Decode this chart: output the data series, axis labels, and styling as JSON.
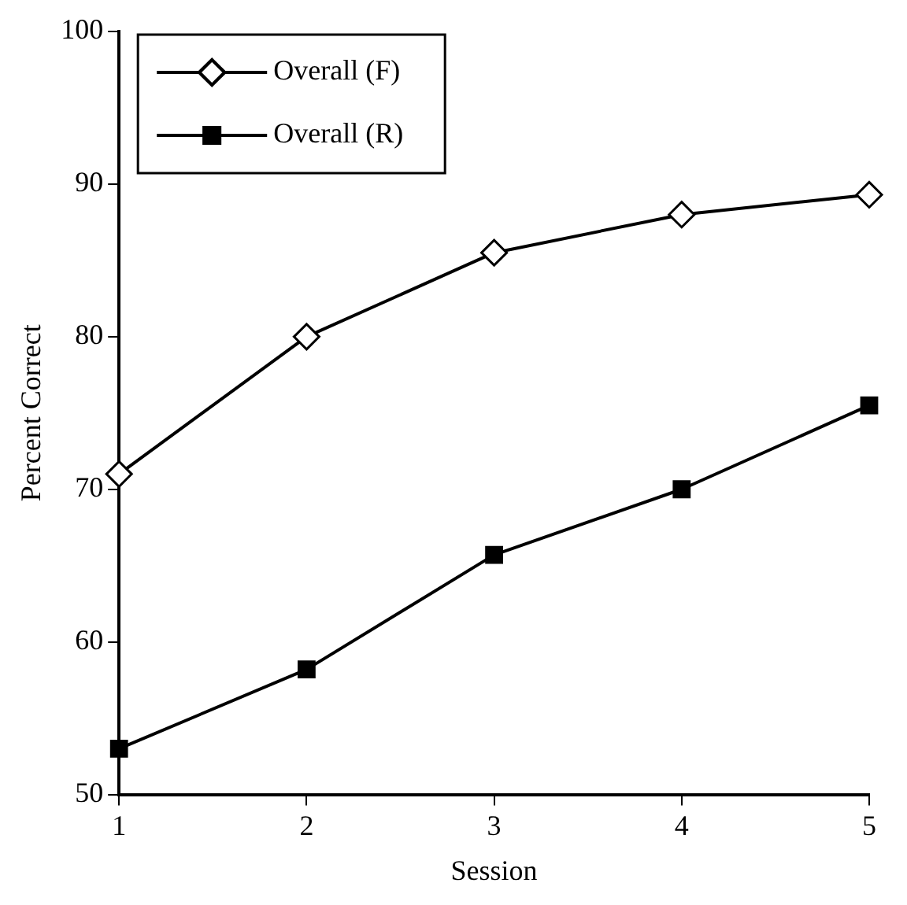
{
  "chart_data": {
    "type": "line",
    "xlabel": "Session",
    "ylabel": "Percent Correct",
    "x": [
      1,
      2,
      3,
      4,
      5
    ],
    "xlim": [
      1,
      5
    ],
    "xticks": [
      1,
      2,
      3,
      4,
      5
    ],
    "ylim": [
      50,
      100
    ],
    "yticks": [
      50,
      60,
      70,
      80,
      90,
      100
    ],
    "grid": false,
    "legend": "top left",
    "line_style": "solid",
    "series": [
      {
        "name": "Overall (F)",
        "color": "#000000",
        "marker": "diamond",
        "values": [
          71,
          80,
          85.5,
          88,
          89.3
        ]
      },
      {
        "name": "Overall (R)",
        "color": "#000000",
        "marker": "square",
        "values": [
          53,
          58.2,
          65.7,
          70,
          75.5
        ]
      }
    ]
  }
}
